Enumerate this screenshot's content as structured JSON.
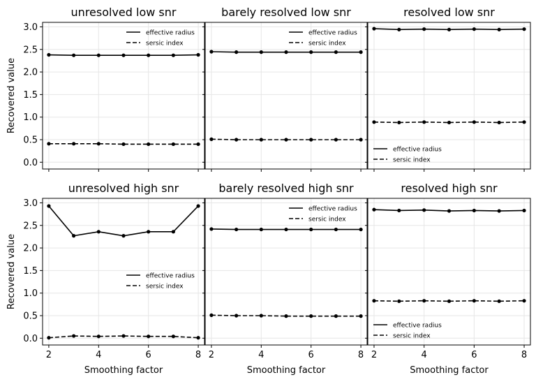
{
  "figure": {
    "shared_ylabel": "Recovered value",
    "shared_xlabel": "Smoothing factor",
    "line_color": "#000000",
    "grid_color": "#e6e6e6"
  },
  "chart_data": [
    {
      "type": "line",
      "title": "unresolved low snr",
      "x": [
        2,
        3,
        4,
        5,
        6,
        7,
        8
      ],
      "series": [
        {
          "name": "effective radius",
          "style": "solid",
          "values": [
            2.38,
            2.37,
            2.37,
            2.37,
            2.37,
            2.37,
            2.38
          ]
        },
        {
          "name": "sersic index",
          "style": "dashed",
          "values": [
            0.41,
            0.41,
            0.41,
            0.4,
            0.4,
            0.4,
            0.4
          ]
        }
      ],
      "xlim": [
        1.75,
        8.25
      ],
      "ylim": [
        -0.15,
        3.1
      ],
      "xticks": [
        2,
        4,
        6,
        8
      ],
      "yticks": [
        0.0,
        0.5,
        1.0,
        1.5,
        2.0,
        2.5,
        3.0
      ],
      "xlabel": "",
      "ylabel": "Recovered value",
      "legend": "top-right",
      "grid": true
    },
    {
      "type": "line",
      "title": "barely resolved low snr",
      "x": [
        2,
        3,
        4,
        5,
        6,
        7,
        8
      ],
      "series": [
        {
          "name": "effective radius",
          "style": "solid",
          "values": [
            2.45,
            2.44,
            2.44,
            2.44,
            2.44,
            2.44,
            2.44
          ]
        },
        {
          "name": "sersic index",
          "style": "dashed",
          "values": [
            0.51,
            0.5,
            0.5,
            0.5,
            0.5,
            0.5,
            0.5
          ]
        }
      ],
      "xlim": [
        1.75,
        8.25
      ],
      "ylim": [
        -0.15,
        3.1
      ],
      "xticks": [
        2,
        4,
        6,
        8
      ],
      "yticks": [
        0.0,
        0.5,
        1.0,
        1.5,
        2.0,
        2.5,
        3.0
      ],
      "xlabel": "",
      "ylabel": "",
      "legend": "top-right",
      "grid": true
    },
    {
      "type": "line",
      "title": "resolved low snr",
      "x": [
        2,
        3,
        4,
        5,
        6,
        7,
        8
      ],
      "series": [
        {
          "name": "effective radius",
          "style": "solid",
          "values": [
            2.96,
            2.94,
            2.95,
            2.94,
            2.95,
            2.94,
            2.95
          ]
        },
        {
          "name": "sersic index",
          "style": "dashed",
          "values": [
            0.89,
            0.88,
            0.89,
            0.88,
            0.89,
            0.88,
            0.89
          ]
        }
      ],
      "xlim": [
        1.75,
        8.25
      ],
      "ylim": [
        -0.15,
        3.1
      ],
      "xticks": [
        2,
        4,
        6,
        8
      ],
      "yticks": [
        0.0,
        0.5,
        1.0,
        1.5,
        2.0,
        2.5,
        3.0
      ],
      "xlabel": "",
      "ylabel": "",
      "legend": "bottom-left",
      "grid": true
    },
    {
      "type": "line",
      "title": "unresolved high snr",
      "x": [
        2,
        3,
        4,
        5,
        6,
        7,
        8
      ],
      "series": [
        {
          "name": "effective radius",
          "style": "solid",
          "values": [
            2.93,
            2.27,
            2.36,
            2.27,
            2.36,
            2.36,
            2.93
          ]
        },
        {
          "name": "sersic index",
          "style": "dashed",
          "values": [
            0.01,
            0.05,
            0.04,
            0.05,
            0.04,
            0.04,
            0.01
          ]
        }
      ],
      "xlim": [
        1.75,
        8.25
      ],
      "ylim": [
        -0.15,
        3.1
      ],
      "xticks": [
        2,
        4,
        6,
        8
      ],
      "yticks": [
        0.0,
        0.5,
        1.0,
        1.5,
        2.0,
        2.5,
        3.0
      ],
      "xlabel": "Smoothing factor",
      "ylabel": "Recovered value",
      "legend": "center-right",
      "grid": true
    },
    {
      "type": "line",
      "title": "barely resolved high snr",
      "x": [
        2,
        3,
        4,
        5,
        6,
        7,
        8
      ],
      "series": [
        {
          "name": "effective radius",
          "style": "solid",
          "values": [
            2.42,
            2.41,
            2.41,
            2.41,
            2.41,
            2.41,
            2.41
          ]
        },
        {
          "name": "sersic index",
          "style": "dashed",
          "values": [
            0.51,
            0.5,
            0.5,
            0.49,
            0.49,
            0.49,
            0.49
          ]
        }
      ],
      "xlim": [
        1.75,
        8.25
      ],
      "ylim": [
        -0.15,
        3.1
      ],
      "xticks": [
        2,
        4,
        6,
        8
      ],
      "yticks": [
        0.0,
        0.5,
        1.0,
        1.5,
        2.0,
        2.5,
        3.0
      ],
      "xlabel": "Smoothing factor",
      "ylabel": "",
      "legend": "top-right",
      "grid": true
    },
    {
      "type": "line",
      "title": "resolved high snr",
      "x": [
        2,
        3,
        4,
        5,
        6,
        7,
        8
      ],
      "series": [
        {
          "name": "effective radius",
          "style": "solid",
          "values": [
            2.85,
            2.83,
            2.84,
            2.82,
            2.83,
            2.82,
            2.83
          ]
        },
        {
          "name": "sersic index",
          "style": "dashed",
          "values": [
            0.83,
            0.82,
            0.83,
            0.82,
            0.83,
            0.82,
            0.83
          ]
        }
      ],
      "xlim": [
        1.75,
        8.25
      ],
      "ylim": [
        -0.15,
        3.1
      ],
      "xticks": [
        2,
        4,
        6,
        8
      ],
      "yticks": [
        0.0,
        0.5,
        1.0,
        1.5,
        2.0,
        2.5,
        3.0
      ],
      "xlabel": "Smoothing factor",
      "ylabel": "",
      "legend": "bottom-left",
      "grid": true
    }
  ]
}
